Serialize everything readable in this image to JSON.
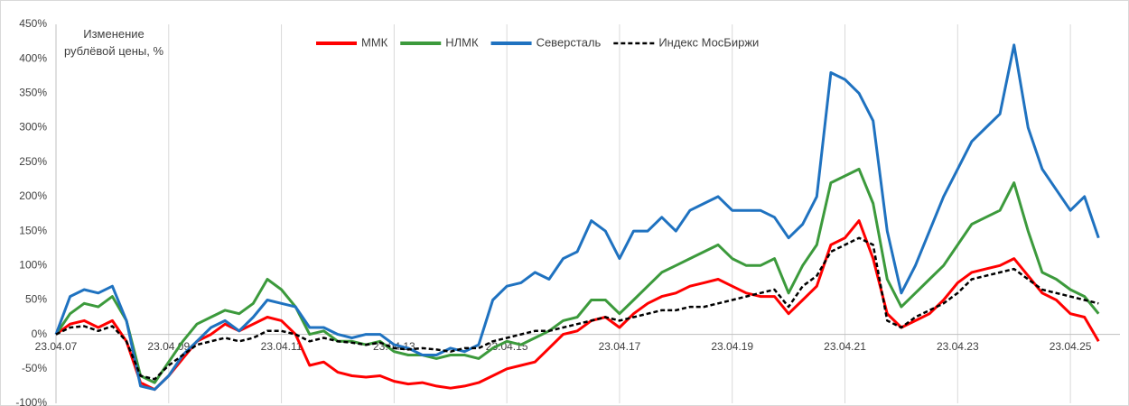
{
  "chart_data": {
    "type": "line",
    "y_label": "Изменение рублёвой цены, %",
    "x": [
      2007.31,
      2007.56,
      2007.81,
      2008.06,
      2008.31,
      2008.56,
      2008.81,
      2009.06,
      2009.31,
      2009.56,
      2009.81,
      2010.06,
      2010.31,
      2010.56,
      2010.81,
      2011.06,
      2011.31,
      2011.56,
      2011.81,
      2012.06,
      2012.31,
      2012.56,
      2012.81,
      2013.06,
      2013.31,
      2013.56,
      2013.81,
      2014.06,
      2014.31,
      2014.56,
      2014.81,
      2015.06,
      2015.31,
      2015.56,
      2015.81,
      2016.06,
      2016.31,
      2016.56,
      2016.81,
      2017.06,
      2017.31,
      2017.56,
      2017.81,
      2018.06,
      2018.31,
      2018.56,
      2018.81,
      2019.06,
      2019.31,
      2019.56,
      2019.81,
      2020.06,
      2020.31,
      2020.56,
      2020.81,
      2021.06,
      2021.31,
      2021.56,
      2021.81,
      2022.06,
      2022.31,
      2022.56,
      2022.81,
      2023.06,
      2023.31,
      2023.56,
      2023.81,
      2024.06,
      2024.31,
      2024.56,
      2024.81,
      2025.06,
      2025.31,
      2025.56,
      2025.81
    ],
    "series": [
      {
        "name": "ММК",
        "color": "#ff0000",
        "dash": false,
        "values": [
          0,
          15,
          20,
          10,
          20,
          -10,
          -70,
          -80,
          -60,
          -35,
          -10,
          0,
          15,
          5,
          15,
          25,
          20,
          0,
          -45,
          -40,
          -55,
          -60,
          -62,
          -60,
          -68,
          -72,
          -70,
          -75,
          -78,
          -75,
          -70,
          -60,
          -50,
          -45,
          -40,
          -20,
          0,
          5,
          20,
          25,
          10,
          30,
          45,
          55,
          60,
          70,
          75,
          80,
          70,
          60,
          55,
          55,
          30,
          50,
          70,
          130,
          140,
          165,
          110,
          30,
          10,
          20,
          30,
          50,
          75,
          90,
          95,
          100,
          110,
          85,
          60,
          50,
          30,
          25,
          -10
        ]
      },
      {
        "name": "НЛМК",
        "color": "#3c9a3c",
        "dash": false,
        "values": [
          0,
          30,
          45,
          40,
          55,
          20,
          -60,
          -70,
          -40,
          -10,
          15,
          25,
          35,
          30,
          45,
          80,
          65,
          40,
          0,
          5,
          -10,
          -10,
          -15,
          -10,
          -25,
          -30,
          -30,
          -35,
          -30,
          -30,
          -35,
          -20,
          -10,
          -15,
          -5,
          5,
          20,
          25,
          50,
          50,
          30,
          50,
          70,
          90,
          100,
          110,
          120,
          130,
          110,
          100,
          100,
          110,
          60,
          100,
          130,
          220,
          230,
          240,
          190,
          80,
          40,
          60,
          80,
          100,
          130,
          160,
          170,
          180,
          220,
          150,
          90,
          80,
          65,
          55,
          30
        ]
      },
      {
        "name": "Северсталь",
        "color": "#1f72c0",
        "dash": false,
        "values": [
          0,
          55,
          65,
          60,
          70,
          20,
          -75,
          -80,
          -60,
          -30,
          -10,
          10,
          20,
          5,
          25,
          50,
          45,
          40,
          10,
          10,
          0,
          -5,
          0,
          0,
          -15,
          -20,
          -30,
          -30,
          -20,
          -25,
          -15,
          50,
          70,
          75,
          90,
          80,
          110,
          120,
          165,
          150,
          110,
          150,
          150,
          170,
          150,
          180,
          190,
          200,
          180,
          180,
          180,
          170,
          140,
          160,
          200,
          380,
          370,
          350,
          310,
          150,
          60,
          100,
          150,
          200,
          240,
          280,
          300,
          320,
          420,
          300,
          240,
          210,
          180,
          200,
          140
        ]
      },
      {
        "name": "Индекс МосБиржи",
        "color": "#000000",
        "dash": true,
        "values": [
          0,
          10,
          12,
          5,
          12,
          -10,
          -60,
          -65,
          -45,
          -30,
          -15,
          -10,
          -5,
          -10,
          -5,
          5,
          5,
          0,
          -10,
          -5,
          -10,
          -12,
          -15,
          -12,
          -20,
          -22,
          -20,
          -22,
          -25,
          -20,
          -20,
          -10,
          -5,
          0,
          5,
          5,
          10,
          15,
          20,
          25,
          20,
          25,
          30,
          35,
          35,
          40,
          40,
          45,
          50,
          55,
          60,
          65,
          40,
          70,
          85,
          120,
          130,
          140,
          130,
          20,
          10,
          25,
          35,
          45,
          60,
          80,
          85,
          90,
          95,
          80,
          65,
          60,
          55,
          50,
          45
        ]
      }
    ],
    "xlim": [
      2007.31,
      2026.19
    ],
    "xticks": [
      {
        "value": 2007.31,
        "label": "23.04.07"
      },
      {
        "value": 2009.31,
        "label": "23.04.09"
      },
      {
        "value": 2011.31,
        "label": "23.04.11"
      },
      {
        "value": 2013.31,
        "label": "23.04.13"
      },
      {
        "value": 2015.31,
        "label": "23.04.15"
      },
      {
        "value": 2017.31,
        "label": "23.04.17"
      },
      {
        "value": 2019.31,
        "label": "23.04.19"
      },
      {
        "value": 2021.31,
        "label": "23.04.21"
      },
      {
        "value": 2023.31,
        "label": "23.04.23"
      },
      {
        "value": 2025.31,
        "label": "23.04.25"
      }
    ],
    "ylim": [
      -100,
      450
    ],
    "yticks": [
      {
        "value": -100,
        "label": "-100%"
      },
      {
        "value": -50,
        "label": "-50%"
      },
      {
        "value": 0,
        "label": "0%"
      },
      {
        "value": 50,
        "label": "50%"
      },
      {
        "value": 100,
        "label": "100%"
      },
      {
        "value": 150,
        "label": "150%"
      },
      {
        "value": 200,
        "label": "200%"
      },
      {
        "value": 250,
        "label": "250%"
      },
      {
        "value": 300,
        "label": "300%"
      },
      {
        "value": 350,
        "label": "350%"
      },
      {
        "value": 400,
        "label": "400%"
      },
      {
        "value": 450,
        "label": "450%"
      }
    ],
    "grid": "x"
  }
}
